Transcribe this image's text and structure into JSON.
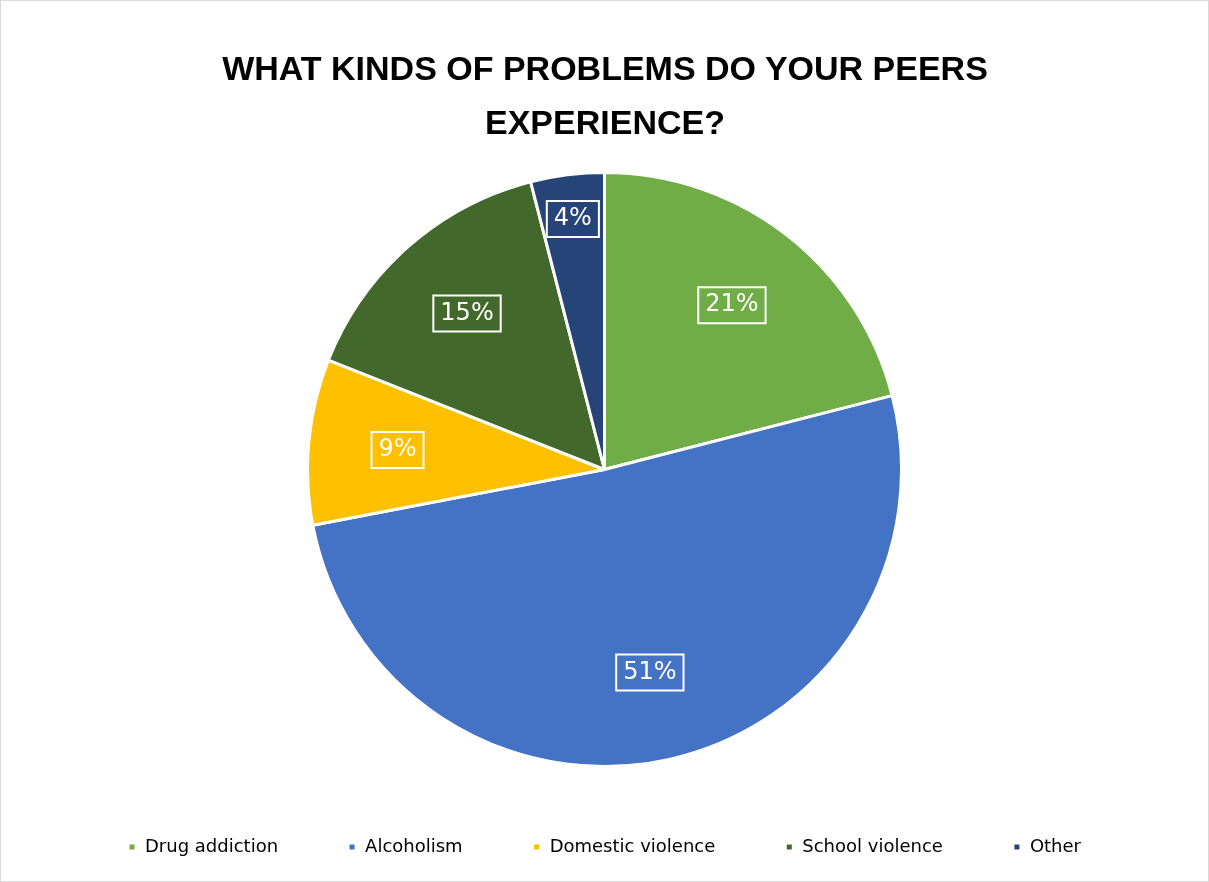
{
  "chart_data": {
    "type": "pie",
    "title": "WHAT KINDS OF PROBLEMS DO YOUR PEERS EXPERIENCE?",
    "categories": [
      "Drug addiction",
      "Alcoholism",
      "Domestic violence",
      "School violence",
      "Other"
    ],
    "values": [
      21,
      51,
      9,
      15,
      4
    ],
    "colors": [
      "#70ad47",
      "#4472c4",
      "#ffc000",
      "#43682b",
      "#264478"
    ],
    "value_labels": [
      "21%",
      "51%",
      "9%",
      "15%",
      "4%"
    ],
    "legend": "bottom"
  }
}
